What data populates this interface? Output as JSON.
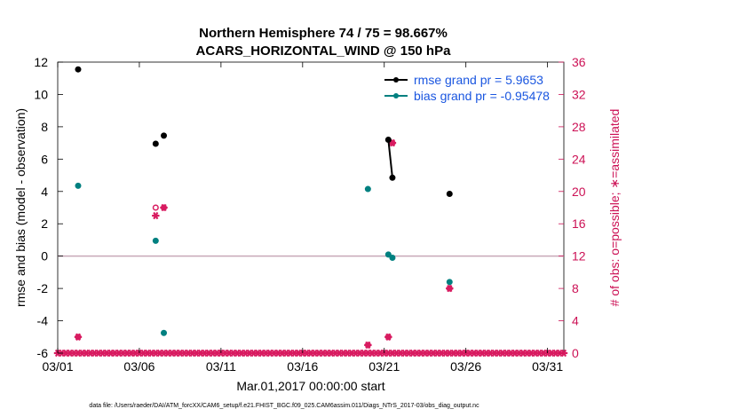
{
  "chart_data": {
    "type": "scatter",
    "title_line1": "Northern Hemisphere 74 / 75 = 98.667%",
    "title_line2": "ACARS_HORIZONTAL_WIND @ 150 hPa",
    "ylabel": "rmse and bias (model - observation)",
    "y2label": "# of obs: o=possible; ∗=assimilated",
    "xlabel": "Mar.01,2017 00:00:00 start",
    "xlim": [
      1,
      32
    ],
    "ylim": [
      -6,
      12
    ],
    "y2lim": [
      0,
      36
    ],
    "xticks": [
      {
        "v": 1,
        "label": "03/01"
      },
      {
        "v": 6,
        "label": "03/06"
      },
      {
        "v": 11,
        "label": "03/11"
      },
      {
        "v": 16,
        "label": "03/16"
      },
      {
        "v": 21,
        "label": "03/21"
      },
      {
        "v": 26,
        "label": "03/26"
      },
      {
        "v": 31,
        "label": "03/31"
      }
    ],
    "yticks": [
      -6,
      -4,
      -2,
      0,
      2,
      4,
      6,
      8,
      10,
      12
    ],
    "y2ticks": [
      0,
      4,
      8,
      12,
      16,
      20,
      24,
      28,
      32,
      36
    ],
    "legend": [
      {
        "name": "rmse grand pr = 5.9653",
        "color": "#000000"
      },
      {
        "name": "bias grand pr = -0.95478",
        "color": "#008080"
      }
    ],
    "rmse": [
      [
        2.25,
        11.55
      ],
      [
        7.0,
        6.95
      ],
      [
        7.5,
        7.45
      ],
      [
        21.25,
        7.2
      ],
      [
        21.5,
        4.85
      ],
      [
        25.0,
        3.85
      ]
    ],
    "rmse_segments": [
      [
        3,
        4
      ]
    ],
    "bias": [
      [
        2.25,
        4.35
      ],
      [
        7.0,
        0.95
      ],
      [
        7.5,
        -4.75
      ],
      [
        20.0,
        4.15
      ],
      [
        21.25,
        0.1
      ],
      [
        21.5,
        -0.1
      ],
      [
        25.0,
        -1.6
      ]
    ],
    "obs_possible": [
      [
        2.25,
        2
      ],
      [
        7.0,
        18
      ],
      [
        7.5,
        18
      ],
      [
        20.0,
        1
      ],
      [
        21.25,
        2
      ],
      [
        21.5,
        26
      ],
      [
        25.0,
        8
      ]
    ],
    "obs_assimilated": [
      [
        2.25,
        2
      ],
      [
        7.0,
        17
      ],
      [
        7.5,
        18
      ],
      [
        20.0,
        1
      ],
      [
        21.25,
        2
      ],
      [
        21.5,
        26
      ],
      [
        25.0,
        8
      ]
    ],
    "zero_obs_start": 1,
    "zero_obs_end": 32,
    "zero_obs_step": 0.25,
    "colors": {
      "rmse": "#000000",
      "bias": "#008080",
      "obs": "#d81b60",
      "zero_line": "#c8a8b8",
      "legend_text": "#1a56e0",
      "right_axis": "#cc1155"
    }
  },
  "footer": "data file: /Users/raeder/DAI/ATM_forcXX/CAM6_setup/f.e21.FHIST_BGC.f09_025.CAM6assim.011/Diags_NTrS_2017-03/obs_diag_output.nc"
}
